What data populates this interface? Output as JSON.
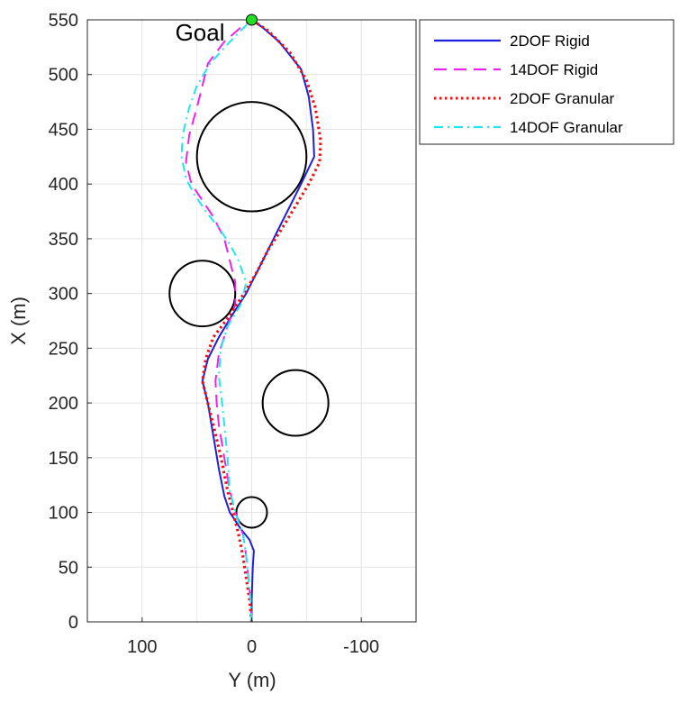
{
  "chart_data": {
    "type": "line",
    "xlabel": "Y (m)",
    "ylabel": "X (m)",
    "xlim": [
      150,
      -150
    ],
    "ylim": [
      0,
      550
    ],
    "x_reversed": true,
    "x_ticks": [
      100,
      0,
      -100
    ],
    "y_ticks": [
      0,
      50,
      100,
      150,
      200,
      250,
      300,
      350,
      400,
      450,
      500,
      550
    ],
    "grid": true,
    "legend_position": "top-right",
    "annotations": [
      {
        "text": "Goal",
        "x": 0,
        "y": 550,
        "marker_color": "#22dd22"
      }
    ],
    "obstacles": [
      {
        "center_y": 0,
        "center_x": 425,
        "radius": 50
      },
      {
        "center_y": 45,
        "center_x": 300,
        "radius": 30
      },
      {
        "center_y": -40,
        "center_x": 200,
        "radius": 30
      },
      {
        "center_y": 0,
        "center_x": 100,
        "radius": 14
      }
    ],
    "series": [
      {
        "name": "2DOF Rigid",
        "color": "#1f1fe0",
        "dash": "solid",
        "points": [
          [
            0,
            0
          ],
          [
            0,
            20
          ],
          [
            -1,
            50
          ],
          [
            -2,
            65
          ],
          [
            2,
            75
          ],
          [
            10,
            85
          ],
          [
            20,
            100
          ],
          [
            25,
            115
          ],
          [
            30,
            140
          ],
          [
            35,
            170
          ],
          [
            40,
            200
          ],
          [
            45,
            220
          ],
          [
            40,
            240
          ],
          [
            30,
            260
          ],
          [
            18,
            280
          ],
          [
            5,
            300
          ],
          [
            -5,
            320
          ],
          [
            -15,
            340
          ],
          [
            -25,
            360
          ],
          [
            -35,
            380
          ],
          [
            -45,
            400
          ],
          [
            -57,
            425
          ],
          [
            -56,
            450
          ],
          [
            -52,
            480
          ],
          [
            -45,
            505
          ],
          [
            -25,
            530
          ],
          [
            -10,
            543
          ],
          [
            0,
            550
          ]
        ]
      },
      {
        "name": "14DOF Rigid",
        "color": "#ee22ee",
        "dash": "dashed",
        "points": [
          [
            0,
            0
          ],
          [
            1,
            20
          ],
          [
            3,
            40
          ],
          [
            5,
            60
          ],
          [
            8,
            80
          ],
          [
            15,
            100
          ],
          [
            20,
            120
          ],
          [
            25,
            150
          ],
          [
            30,
            180
          ],
          [
            32,
            200
          ],
          [
            33,
            220
          ],
          [
            30,
            245
          ],
          [
            22,
            270
          ],
          [
            15,
            290
          ],
          [
            15,
            310
          ],
          [
            20,
            330
          ],
          [
            25,
            350
          ],
          [
            35,
            370
          ],
          [
            45,
            385
          ],
          [
            55,
            400
          ],
          [
            60,
            420
          ],
          [
            57,
            445
          ],
          [
            50,
            470
          ],
          [
            45,
            490
          ],
          [
            40,
            510
          ],
          [
            25,
            530
          ],
          [
            10,
            543
          ],
          [
            0,
            550
          ]
        ]
      },
      {
        "name": "2DOF Granular",
        "color": "#ee1111",
        "dash": "dotted",
        "points": [
          [
            0,
            0
          ],
          [
            2,
            20
          ],
          [
            5,
            40
          ],
          [
            8,
            60
          ],
          [
            12,
            80
          ],
          [
            17,
            100
          ],
          [
            22,
            120
          ],
          [
            28,
            150
          ],
          [
            35,
            180
          ],
          [
            40,
            200
          ],
          [
            45,
            220
          ],
          [
            42,
            240
          ],
          [
            35,
            260
          ],
          [
            20,
            280
          ],
          [
            7,
            300
          ],
          [
            -5,
            320
          ],
          [
            -15,
            340
          ],
          [
            -28,
            360
          ],
          [
            -40,
            380
          ],
          [
            -52,
            400
          ],
          [
            -62,
            420
          ],
          [
            -63,
            440
          ],
          [
            -58,
            470
          ],
          [
            -50,
            495
          ],
          [
            -35,
            520
          ],
          [
            -15,
            540
          ],
          [
            0,
            550
          ]
        ]
      },
      {
        "name": "14DOF Granular",
        "color": "#22e6f0",
        "dash": "dashdot",
        "points": [
          [
            0,
            0
          ],
          [
            1,
            20
          ],
          [
            3,
            40
          ],
          [
            5,
            60
          ],
          [
            8,
            80
          ],
          [
            15,
            100
          ],
          [
            20,
            120
          ],
          [
            22,
            150
          ],
          [
            25,
            180
          ],
          [
            27,
            200
          ],
          [
            30,
            225
          ],
          [
            28,
            250
          ],
          [
            22,
            270
          ],
          [
            10,
            290
          ],
          [
            5,
            310
          ],
          [
            12,
            330
          ],
          [
            20,
            345
          ],
          [
            30,
            360
          ],
          [
            42,
            375
          ],
          [
            52,
            390
          ],
          [
            60,
            405
          ],
          [
            64,
            425
          ],
          [
            63,
            445
          ],
          [
            57,
            470
          ],
          [
            50,
            490
          ],
          [
            38,
            510
          ],
          [
            20,
            530
          ],
          [
            5,
            545
          ],
          [
            0,
            550
          ]
        ]
      }
    ]
  }
}
